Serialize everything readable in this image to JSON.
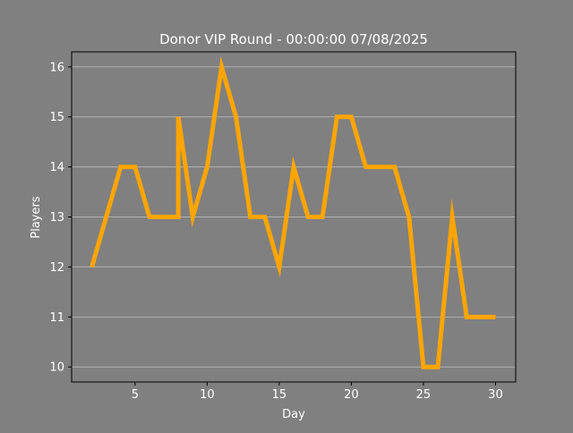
{
  "chart_data": {
    "type": "line",
    "title": "Donor VIP Round - 00:00:00 07/08/2025",
    "xlabel": "Day",
    "ylabel": "Players",
    "xlim": [
      0.6,
      31.4
    ],
    "ylim": [
      9.7,
      16.3
    ],
    "xticks": [
      5,
      10,
      15,
      20,
      25,
      30
    ],
    "yticks": [
      10,
      11,
      12,
      13,
      14,
      15,
      16
    ],
    "grid": "horizontal",
    "legend": "none",
    "colors": {
      "figure_background": "#808080",
      "axes_background": "#808080",
      "text": "#ffffff",
      "grid": "#b0b0b0",
      "spine": "#000000",
      "line": "#ffa500"
    },
    "series": [
      {
        "x": [
          2,
          3,
          4,
          5,
          6,
          7,
          8,
          8,
          9,
          10,
          11,
          12,
          13,
          14,
          15,
          16,
          17,
          18,
          19,
          20,
          21,
          22,
          23,
          24,
          25,
          26,
          27,
          28,
          29,
          30
        ],
        "values": [
          12,
          13,
          14,
          14,
          13,
          13,
          13,
          15,
          13,
          14,
          16,
          15,
          13,
          13,
          12,
          14,
          13,
          13,
          15,
          15,
          14,
          14,
          14,
          13,
          10,
          10,
          13,
          11,
          11,
          11
        ]
      }
    ]
  }
}
